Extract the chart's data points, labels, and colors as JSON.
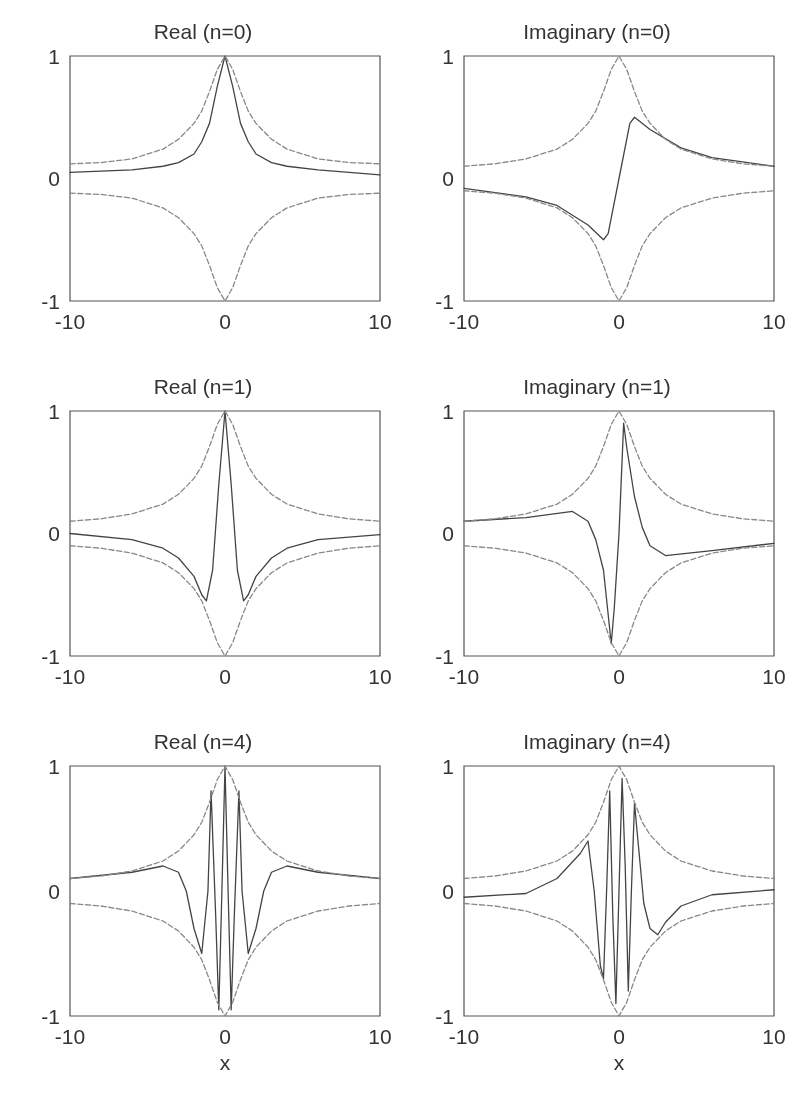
{
  "chart_data": [
    {
      "type": "line",
      "title": "Real (n=0)",
      "xlim": [
        -10,
        10
      ],
      "xticks": [
        -10,
        0,
        10
      ],
      "ylim": [
        -1,
        1
      ],
      "yticks": [
        -1,
        0,
        1
      ],
      "grid": false,
      "marker": "none",
      "series": [
        {
          "color": "#444444",
          "line_style": "solid",
          "x": [
            -10,
            -6,
            -4,
            -3,
            -2,
            -1.5,
            -1,
            -0.5,
            0,
            0.5,
            1,
            1.5,
            2,
            3,
            4,
            6,
            10
          ],
          "values": [
            0.05,
            0.07,
            0.1,
            0.13,
            0.2,
            0.3,
            0.45,
            0.75,
            1,
            0.75,
            0.45,
            0.3,
            0.2,
            0.13,
            0.1,
            0.07,
            0.03
          ]
        },
        {
          "color": "#888888",
          "line_style": "dashed",
          "x": [
            -10,
            -8,
            -6,
            -4,
            -3,
            -2,
            -1.5,
            -1,
            -0.5,
            0,
            0.5,
            1,
            1.5,
            2,
            3,
            4,
            6,
            8,
            10
          ],
          "values": [
            0.12,
            0.13,
            0.16,
            0.24,
            0.32,
            0.45,
            0.55,
            0.71,
            0.89,
            1,
            0.89,
            0.71,
            0.55,
            0.45,
            0.32,
            0.24,
            0.16,
            0.13,
            0.12
          ]
        },
        {
          "color": "#888888",
          "line_style": "dashed",
          "x": [
            -10,
            -8,
            -6,
            -4,
            -3,
            -2,
            -1.5,
            -1,
            -0.5,
            0,
            0.5,
            1,
            1.5,
            2,
            3,
            4,
            6,
            8,
            10
          ],
          "values": [
            -0.12,
            -0.13,
            -0.16,
            -0.24,
            -0.32,
            -0.45,
            -0.55,
            -0.71,
            -0.89,
            -1,
            -0.89,
            -0.71,
            -0.55,
            -0.45,
            -0.32,
            -0.24,
            -0.16,
            -0.13,
            -0.12
          ]
        }
      ]
    },
    {
      "type": "line",
      "title": "Imaginary (n=0)",
      "xlim": [
        -10,
        10
      ],
      "xticks": [
        -10,
        0,
        10
      ],
      "ylim": [
        -1,
        1
      ],
      "yticks": [
        -1,
        0,
        1
      ],
      "grid": false,
      "marker": "none",
      "series": [
        {
          "color": "#444444",
          "line_style": "solid",
          "x": [
            -10,
            -6,
            -4,
            -2,
            -1,
            -0.7,
            0,
            0.7,
            1,
            2,
            4,
            6,
            10
          ],
          "values": [
            -0.08,
            -0.15,
            -0.22,
            -0.38,
            -0.5,
            -0.45,
            0,
            0.45,
            0.5,
            0.4,
            0.25,
            0.17,
            0.1
          ]
        },
        {
          "color": "#888888",
          "line_style": "dashed",
          "x": [
            -10,
            -8,
            -6,
            -4,
            -3,
            -2,
            -1.5,
            -1,
            -0.5,
            0,
            0.5,
            1,
            1.5,
            2,
            3,
            4,
            6,
            8,
            10
          ],
          "values": [
            0.1,
            0.12,
            0.16,
            0.24,
            0.32,
            0.45,
            0.55,
            0.71,
            0.89,
            1,
            0.89,
            0.71,
            0.55,
            0.45,
            0.32,
            0.24,
            0.16,
            0.12,
            0.1
          ]
        },
        {
          "color": "#888888",
          "line_style": "dashed",
          "x": [
            -10,
            -8,
            -6,
            -4,
            -3,
            -2,
            -1.5,
            -1,
            -0.5,
            0,
            0.5,
            1,
            1.5,
            2,
            3,
            4,
            6,
            8,
            10
          ],
          "values": [
            -0.1,
            -0.12,
            -0.16,
            -0.24,
            -0.32,
            -0.45,
            -0.55,
            -0.71,
            -0.89,
            -1,
            -0.89,
            -0.71,
            -0.55,
            -0.45,
            -0.32,
            -0.24,
            -0.16,
            -0.12,
            -0.1
          ]
        }
      ]
    },
    {
      "type": "line",
      "title": "Real (n=1)",
      "xlim": [
        -10,
        10
      ],
      "xticks": [
        -10,
        0,
        10
      ],
      "ylim": [
        -1,
        1
      ],
      "yticks": [
        -1,
        0,
        1
      ],
      "grid": false,
      "marker": "none",
      "series": [
        {
          "color": "#444444",
          "line_style": "solid",
          "x": [
            -10,
            -6,
            -4,
            -3,
            -2,
            -1.5,
            -1.2,
            -0.8,
            -0.4,
            0,
            0.4,
            0.8,
            1.2,
            1.5,
            2,
            3,
            4,
            6,
            10
          ],
          "values": [
            0.0,
            -0.05,
            -0.12,
            -0.2,
            -0.35,
            -0.5,
            -0.55,
            -0.3,
            0.4,
            1,
            0.4,
            -0.3,
            -0.55,
            -0.5,
            -0.35,
            -0.2,
            -0.12,
            -0.05,
            -0.01
          ]
        },
        {
          "color": "#888888",
          "line_style": "dashed",
          "x": [
            -10,
            -8,
            -6,
            -4,
            -3,
            -2,
            -1.5,
            -1,
            -0.5,
            0,
            0.5,
            1,
            1.5,
            2,
            3,
            4,
            6,
            8,
            10
          ],
          "values": [
            0.1,
            0.12,
            0.16,
            0.24,
            0.32,
            0.45,
            0.55,
            0.71,
            0.89,
            1,
            0.89,
            0.71,
            0.55,
            0.45,
            0.32,
            0.24,
            0.16,
            0.12,
            0.1
          ]
        },
        {
          "color": "#888888",
          "line_style": "dashed",
          "x": [
            -10,
            -8,
            -6,
            -4,
            -3,
            -2,
            -1.5,
            -1,
            -0.5,
            0,
            0.5,
            1,
            1.5,
            2,
            3,
            4,
            6,
            8,
            10
          ],
          "values": [
            -0.1,
            -0.12,
            -0.16,
            -0.24,
            -0.32,
            -0.45,
            -0.55,
            -0.71,
            -0.89,
            -1,
            -0.89,
            -0.71,
            -0.55,
            -0.45,
            -0.32,
            -0.24,
            -0.16,
            -0.12,
            -0.1
          ]
        }
      ]
    },
    {
      "type": "line",
      "title": "Imaginary (n=1)",
      "xlim": [
        -10,
        10
      ],
      "xticks": [
        -10,
        0,
        10
      ],
      "ylim": [
        -1,
        1
      ],
      "yticks": [
        -1,
        0,
        1
      ],
      "grid": false,
      "marker": "none",
      "series": [
        {
          "color": "#444444",
          "line_style": "solid",
          "x": [
            -10,
            -6,
            -3,
            -2,
            -1.5,
            -1,
            -0.5,
            -0.3,
            0,
            0.3,
            0.5,
            1,
            1.5,
            2,
            3,
            6,
            10
          ],
          "values": [
            0.1,
            0.13,
            0.18,
            0.1,
            -0.05,
            -0.3,
            -0.9,
            -0.6,
            0,
            0.9,
            0.7,
            0.3,
            0.05,
            -0.1,
            -0.18,
            -0.14,
            -0.08
          ]
        },
        {
          "color": "#888888",
          "line_style": "dashed",
          "x": [
            -10,
            -8,
            -6,
            -4,
            -3,
            -2,
            -1.5,
            -1,
            -0.5,
            0,
            0.5,
            1,
            1.5,
            2,
            3,
            4,
            6,
            8,
            10
          ],
          "values": [
            0.1,
            0.12,
            0.16,
            0.24,
            0.32,
            0.45,
            0.55,
            0.71,
            0.89,
            1,
            0.89,
            0.71,
            0.55,
            0.45,
            0.32,
            0.24,
            0.16,
            0.12,
            0.1
          ]
        },
        {
          "color": "#888888",
          "line_style": "dashed",
          "x": [
            -10,
            -8,
            -6,
            -4,
            -3,
            -2,
            -1.5,
            -1,
            -0.5,
            0,
            0.5,
            1,
            1.5,
            2,
            3,
            4,
            6,
            8,
            10
          ],
          "values": [
            -0.1,
            -0.12,
            -0.16,
            -0.24,
            -0.32,
            -0.45,
            -0.55,
            -0.71,
            -0.89,
            -1,
            -0.89,
            -0.71,
            -0.55,
            -0.45,
            -0.32,
            -0.24,
            -0.16,
            -0.12,
            -0.1
          ]
        }
      ]
    },
    {
      "type": "line",
      "title": "Real (n=4)",
      "xlabel": "x",
      "xlim": [
        -10,
        10
      ],
      "xticks": [
        -10,
        0,
        10
      ],
      "ylim": [
        -1,
        1
      ],
      "yticks": [
        -1,
        0,
        1
      ],
      "grid": false,
      "marker": "none",
      "series": [
        {
          "color": "#444444",
          "line_style": "solid",
          "x": [
            -10,
            -6,
            -4,
            -3,
            -2.5,
            -2,
            -1.5,
            -1.1,
            -0.9,
            -0.6,
            -0.4,
            -0.2,
            0,
            0.2,
            0.4,
            0.6,
            0.9,
            1.1,
            1.5,
            2,
            2.5,
            3,
            4,
            6,
            10
          ],
          "values": [
            0.1,
            0.15,
            0.2,
            0.15,
            0,
            -0.3,
            -0.5,
            0,
            0.8,
            -0.2,
            -0.95,
            0,
            1,
            0,
            -0.95,
            -0.2,
            0.8,
            0,
            -0.5,
            -0.3,
            0,
            0.15,
            0.2,
            0.15,
            0.1
          ]
        },
        {
          "color": "#888888",
          "line_style": "dashed",
          "x": [
            -10,
            -8,
            -6,
            -4,
            -3,
            -2,
            -1.5,
            -1,
            -0.5,
            0,
            0.5,
            1,
            1.5,
            2,
            3,
            4,
            6,
            8,
            10
          ],
          "values": [
            0.1,
            0.12,
            0.16,
            0.24,
            0.32,
            0.45,
            0.55,
            0.71,
            0.89,
            1,
            0.89,
            0.71,
            0.55,
            0.45,
            0.32,
            0.24,
            0.16,
            0.12,
            0.1
          ]
        },
        {
          "color": "#888888",
          "line_style": "dashed",
          "x": [
            -10,
            -8,
            -6,
            -4,
            -3,
            -2,
            -1.5,
            -1,
            -0.5,
            0,
            0.5,
            1,
            1.5,
            2,
            3,
            4,
            6,
            8,
            10
          ],
          "values": [
            -0.1,
            -0.12,
            -0.16,
            -0.24,
            -0.32,
            -0.45,
            -0.55,
            -0.71,
            -0.89,
            -1,
            -0.89,
            -0.71,
            -0.55,
            -0.45,
            -0.32,
            -0.24,
            -0.16,
            -0.12,
            -0.1
          ]
        }
      ]
    },
    {
      "type": "line",
      "title": "Imaginary (n=4)",
      "xlabel": "x",
      "xlim": [
        -10,
        10
      ],
      "xticks": [
        -10,
        0,
        10
      ],
      "ylim": [
        -1,
        1
      ],
      "yticks": [
        -1,
        0,
        1
      ],
      "grid": false,
      "marker": "none",
      "series": [
        {
          "color": "#444444",
          "line_style": "solid",
          "x": [
            -10,
            -6,
            -4,
            -2.5,
            -2,
            -1.6,
            -1.2,
            -1,
            -0.8,
            -0.6,
            -0.4,
            -0.2,
            0,
            0.2,
            0.4,
            0.6,
            0.8,
            1,
            1.3,
            1.6,
            2,
            2.5,
            3,
            4,
            6,
            10
          ],
          "values": [
            -0.05,
            -0.02,
            0.1,
            0.3,
            0.4,
            0,
            -0.6,
            -0.7,
            0,
            0.8,
            -0.2,
            -0.9,
            0,
            0.9,
            0.2,
            -0.8,
            0,
            0.7,
            0.3,
            -0.1,
            -0.3,
            -0.35,
            -0.25,
            -0.12,
            -0.03,
            0.01
          ]
        },
        {
          "color": "#888888",
          "line_style": "dashed",
          "x": [
            -10,
            -8,
            -6,
            -4,
            -3,
            -2,
            -1.5,
            -1,
            -0.5,
            0,
            0.5,
            1,
            1.5,
            2,
            3,
            4,
            6,
            8,
            10
          ],
          "values": [
            0.1,
            0.12,
            0.16,
            0.24,
            0.32,
            0.45,
            0.55,
            0.71,
            0.89,
            1,
            0.89,
            0.71,
            0.55,
            0.45,
            0.32,
            0.24,
            0.16,
            0.12,
            0.1
          ]
        },
        {
          "color": "#888888",
          "line_style": "dashed",
          "x": [
            -10,
            -8,
            -6,
            -4,
            -3,
            -2,
            -1.5,
            -1,
            -0.5,
            0,
            0.5,
            1,
            1.5,
            2,
            3,
            4,
            6,
            8,
            10
          ],
          "values": [
            -0.1,
            -0.12,
            -0.16,
            -0.24,
            -0.32,
            -0.45,
            -0.55,
            -0.71,
            -0.89,
            -1,
            -0.89,
            -0.71,
            -0.55,
            -0.45,
            -0.32,
            -0.24,
            -0.16,
            -0.12,
            -0.1
          ]
        }
      ]
    }
  ]
}
